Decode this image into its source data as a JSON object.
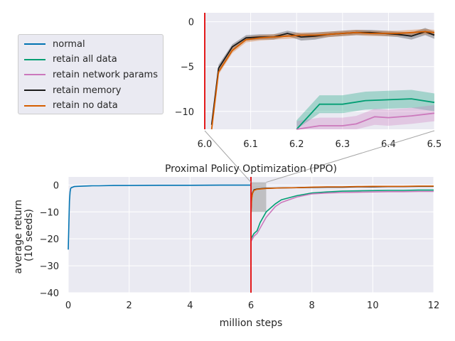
{
  "chart_data": [
    {
      "id": "main",
      "type": "line",
      "title": "Proximal Policy Optimization (PPO)",
      "xlabel": "million steps",
      "ylabel": "average return\n(10 seeds)",
      "xlim": [
        0,
        12
      ],
      "ylim": [
        -40,
        3
      ],
      "xticks": [
        0,
        2,
        4,
        6,
        8,
        10,
        12
      ],
      "yticks": [
        0,
        -10,
        -20,
        -30,
        -40
      ],
      "grid": true,
      "vline_x": 6,
      "highlight_box": {
        "x": [
          6.0,
          6.5
        ],
        "y": [
          -10,
          1
        ]
      },
      "series": [
        {
          "name": "normal",
          "x": [
            0,
            0.02,
            0.04,
            0.06,
            0.08,
            0.1,
            0.15,
            0.2,
            0.3,
            0.5,
            0.8,
            1,
            1.5,
            2,
            3,
            4,
            5,
            6
          ],
          "y": [
            -24,
            -14,
            -6,
            -2.5,
            -1.3,
            -1.0,
            -0.8,
            -0.6,
            -0.5,
            -0.4,
            -0.3,
            -0.3,
            -0.2,
            -0.2,
            -0.1,
            -0.1,
            -0.05,
            -0.05
          ]
        },
        {
          "name": "retain all data",
          "x": [
            6.0,
            6.05,
            6.1,
            6.2,
            6.3,
            6.5,
            6.8,
            7.0,
            7.5,
            8,
            8.5,
            9,
            9.5,
            10,
            10.5,
            11,
            11.5,
            12
          ],
          "y": [
            -20,
            -19,
            -18,
            -17,
            -14,
            -10,
            -7,
            -5.5,
            -4,
            -3,
            -2.6,
            -2.3,
            -2.2,
            -2.1,
            -2.0,
            -2.0,
            -1.9,
            -1.9
          ]
        },
        {
          "name": "retain network params",
          "x": [
            6.0,
            6.05,
            6.1,
            6.2,
            6.3,
            6.5,
            6.8,
            7.0,
            7.5,
            8,
            8.5,
            9,
            9.5,
            10,
            10.5,
            11,
            11.5,
            12
          ],
          "y": [
            -21,
            -20,
            -19,
            -18,
            -16,
            -12,
            -8,
            -6.5,
            -4.5,
            -3.3,
            -3,
            -2.8,
            -2.7,
            -2.6,
            -2.5,
            -2.5,
            -2.4,
            -2.4
          ]
        },
        {
          "name": "retain memory",
          "x": [
            6.0,
            6.02,
            6.05,
            6.1,
            6.2,
            6.5,
            7,
            7.5,
            8,
            8.5,
            9,
            9.5,
            10,
            10.5,
            11,
            11.5,
            12
          ],
          "y": [
            -10,
            -5,
            -3,
            -1.8,
            -1.5,
            -1.2,
            -1.1,
            -1.0,
            -0.9,
            -0.8,
            -0.8,
            -0.7,
            -0.7,
            -0.6,
            -0.6,
            -0.5,
            -0.5
          ]
        },
        {
          "name": "retain no data",
          "x": [
            6.0,
            6.02,
            6.05,
            6.1,
            6.2,
            6.5,
            7,
            7.5,
            8,
            8.5,
            9,
            9.5,
            10,
            10.5,
            11,
            11.5,
            12
          ],
          "y": [
            -12,
            -5.5,
            -3.2,
            -2,
            -1.6,
            -1.3,
            -1.1,
            -1.0,
            -0.8,
            -0.7,
            -0.7,
            -0.6,
            -0.5,
            -0.5,
            -0.5,
            -0.4,
            -0.4
          ]
        }
      ]
    },
    {
      "id": "inset",
      "type": "line",
      "title": "",
      "xlim": [
        6.0,
        6.5
      ],
      "ylim": [
        -12,
        1
      ],
      "xticks": [
        6.0,
        6.1,
        6.2,
        6.3,
        6.4,
        6.5
      ],
      "xticklabels": [
        "6.0",
        "6.1",
        "6.2",
        "6.3",
        "6.4",
        "6.5"
      ],
      "yticks": [
        0,
        -5,
        -10
      ],
      "grid": true,
      "vline_x": 6.0,
      "series": [
        {
          "name": "retain all data",
          "x": [
            6.2,
            6.25,
            6.3,
            6.35,
            6.4,
            6.45,
            6.5
          ],
          "y": [
            -12,
            -9.2,
            -9.2,
            -8.8,
            -8.7,
            -8.6,
            -9.0
          ],
          "band": [
            1.0,
            1.0,
            1.0,
            1.0,
            1.0,
            1.0,
            1.0
          ]
        },
        {
          "name": "retain network params",
          "x": [
            6.2,
            6.25,
            6.3,
            6.33,
            6.37,
            6.4,
            6.45,
            6.5
          ],
          "y": [
            -12,
            -11.6,
            -11.6,
            -11.4,
            -10.6,
            -10.7,
            -10.5,
            -10.2
          ],
          "band": [
            0.9,
            0.9,
            0.9,
            0.9,
            0.9,
            0.9,
            0.9,
            0.9
          ]
        },
        {
          "name": "retain memory",
          "x": [
            6.015,
            6.03,
            6.06,
            6.09,
            6.12,
            6.15,
            6.18,
            6.21,
            6.24,
            6.27,
            6.3,
            6.33,
            6.36,
            6.39,
            6.42,
            6.45,
            6.48,
            6.5
          ],
          "y": [
            -11.5,
            -5.2,
            -2.8,
            -1.8,
            -1.7,
            -1.7,
            -1.3,
            -1.7,
            -1.6,
            -1.4,
            -1.3,
            -1.2,
            -1.2,
            -1.3,
            -1.4,
            -1.6,
            -1.1,
            -1.5
          ],
          "band": [
            0.4,
            0.4,
            0.3,
            0.3,
            0.3,
            0.3,
            0.3,
            0.4,
            0.4,
            0.3,
            0.3,
            0.3,
            0.3,
            0.3,
            0.3,
            0.4,
            0.4,
            0.4
          ]
        },
        {
          "name": "retain no data",
          "x": [
            6.015,
            6.03,
            6.06,
            6.09,
            6.12,
            6.15,
            6.18,
            6.21,
            6.24,
            6.27,
            6.3,
            6.33,
            6.36,
            6.39,
            6.42,
            6.45,
            6.48,
            6.5
          ],
          "y": [
            -12,
            -5.6,
            -3.2,
            -2.0,
            -1.8,
            -1.7,
            -1.6,
            -1.5,
            -1.5,
            -1.4,
            -1.3,
            -1.2,
            -1.3,
            -1.3,
            -1.3,
            -1.2,
            -1.1,
            -1.2
          ],
          "band": [
            0.3,
            0.3,
            0.3,
            0.3,
            0.3,
            0.3,
            0.3,
            0.3,
            0.3,
            0.3,
            0.3,
            0.3,
            0.3,
            0.3,
            0.3,
            0.3,
            0.3,
            0.3
          ]
        }
      ]
    }
  ],
  "legend": {
    "placement": "left of inset",
    "items": [
      {
        "label": "normal",
        "color": "#0173b2"
      },
      {
        "label": "retain all data",
        "color": "#029e73"
      },
      {
        "label": "retain network params",
        "color": "#cc78bc"
      },
      {
        "label": "retain memory",
        "color": "#1a1a1a"
      },
      {
        "label": "retain no data",
        "color": "#d55e00"
      }
    ]
  },
  "colors": {
    "normal": "#0173b2",
    "retain all data": "#029e73",
    "retain network params": "#cc78bc",
    "retain memory": "#1a1a1a",
    "retain no data": "#d55e00",
    "vline": "#e31a1c",
    "axes_bg": "#eaeaf2",
    "grid": "#ffffff"
  }
}
